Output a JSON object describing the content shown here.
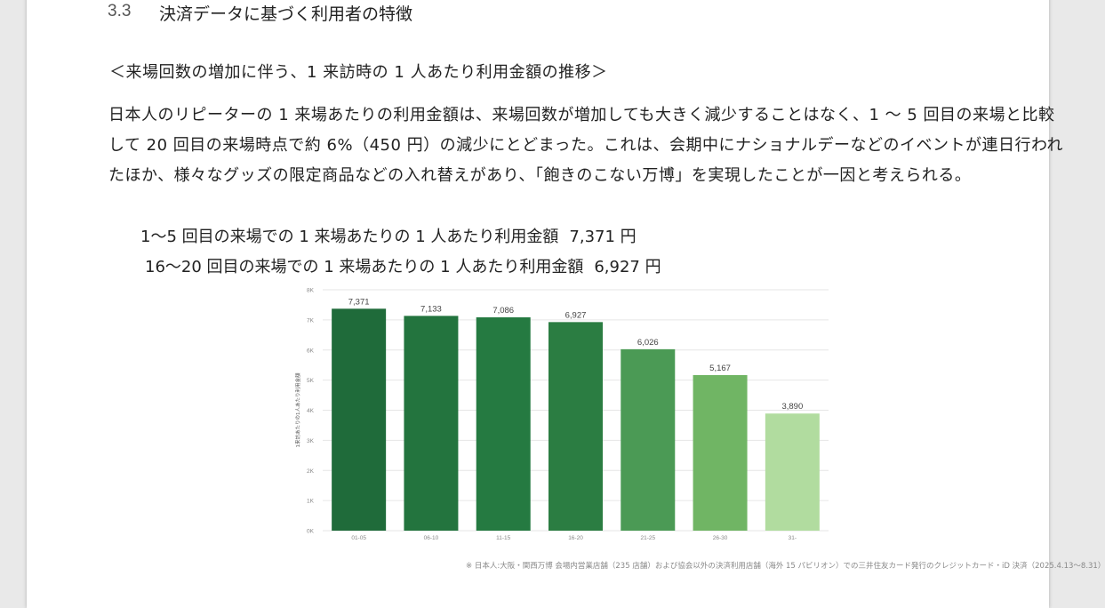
{
  "section": {
    "number": "3.3",
    "title": "決済データに基づく利用者の特徴"
  },
  "subtitle": "＜来場回数の増加に伴う、1 来訪時の 1 人あたり利用金額の推移＞",
  "paragraph": [
    "日本人のリピーターの 1 来場あたりの利用金額は、来場回数が増加しても大きく減少することはなく、1 ～ 5 回目の来場と比較",
    "して 20 回目の来場時点で約 6%（450 円）の減少にとどまった。これは、会期中にナショナルデーなどのイベントが連日行われ",
    "たほか、様々なグッズの限定商品などの入れ替えがあり、「飽きのこない万博」を実現したことが一因と考えられる。"
  ],
  "summary": [
    {
      "label": "1～5 回目の来場での 1 来場あたりの 1 人あたり利用金額",
      "value": "7,371 円"
    },
    {
      "label": "16～20 回目の来場での 1 来場あたりの 1 人あたり利用金額",
      "value": "6,927 円"
    }
  ],
  "chart_data": {
    "type": "bar",
    "ylabel": "1来訪あたりの1人あたり利用金額",
    "xlabel": "",
    "ylim": [
      0,
      8000
    ],
    "yticks": [
      "0K",
      "1K",
      "2K",
      "3K",
      "4K",
      "5K",
      "6K",
      "7K",
      "8K"
    ],
    "categories": [
      "01-05",
      "06-10",
      "11-15",
      "16-20",
      "21-25",
      "26-30",
      "31-"
    ],
    "values": [
      7371,
      7133,
      7086,
      6927,
      6026,
      5167,
      3890
    ],
    "value_labels": [
      "7,371",
      "7,133",
      "7,086",
      "6,927",
      "6,026",
      "5,167",
      "3,890"
    ],
    "colors": [
      "#1f6b3a",
      "#23743e",
      "#257a41",
      "#2b7d42",
      "#4b9a55",
      "#70b564",
      "#b1dc9f"
    ],
    "grid": true
  },
  "footnote": "※ 日本人:大阪・関西万博 会場内営業店舗（235 店舗）および協会以外の決済利用店舗（海外 15 パビリオン）での三井住友カード発行のクレジットカード・iD 決済（2025.4.13～8.31）"
}
